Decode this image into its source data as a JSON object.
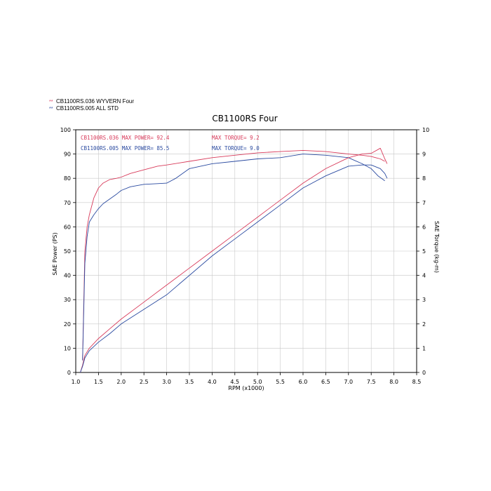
{
  "legend": [
    {
      "marker": "**",
      "label": "CB1100RS.036  WYVERN Four",
      "color": "#d83a5a"
    },
    {
      "marker": "**",
      "label": "CB1100RS.005  ALL STD",
      "color": "#2a4aa0"
    }
  ],
  "annotations": {
    "red_power": "CB1100RS.036  MAX POWER= 92.4",
    "red_torque": "MAX TORQUE= 9.2",
    "blue_power": "CB1100RS.005  MAX POWER= 85.5",
    "blue_torque": "MAX TORQUE= 9.0"
  },
  "chart_data": {
    "type": "line",
    "title": "CB1100RS Four",
    "xlabel": "RPM (x1000)",
    "ylabel": "SAE Power (PS)",
    "y2label": "SAE Torque (kg-m)",
    "xlim": [
      1.0,
      8.5
    ],
    "ylim": [
      0,
      100
    ],
    "y2lim": [
      0,
      10
    ],
    "xticks": [
      "1.0",
      "1.5",
      "2.0",
      "2.5",
      "3.0",
      "3.5",
      "4.0",
      "4.5",
      "5.0",
      "5.5",
      "6.0",
      "6.5",
      "7.0",
      "7.5",
      "8.0",
      "8.5"
    ],
    "yticks": [
      "0",
      "10",
      "20",
      "30",
      "40",
      "50",
      "60",
      "70",
      "80",
      "90",
      "100"
    ],
    "y2ticks": [
      "0",
      "1",
      "2",
      "3",
      "4",
      "5",
      "6",
      "7",
      "8",
      "9",
      "10"
    ],
    "grid": true,
    "colors": {
      "red": "#d83a5a",
      "blue": "#2a4aa0"
    },
    "series": [
      {
        "name": "CB1100RS.036  WYVERN Four",
        "axis": "torque",
        "color": "#d83a5a",
        "x": [
          1.15,
          1.2,
          1.25,
          1.3,
          1.4,
          1.5,
          1.6,
          1.75,
          1.9,
          2.0,
          2.2,
          2.5,
          2.8,
          3.0,
          3.5,
          4.0,
          4.5,
          5.0,
          5.5,
          6.0,
          6.5,
          7.0,
          7.3,
          7.5,
          7.6,
          7.7,
          7.8
        ],
        "y": [
          0.5,
          5.0,
          6.0,
          6.5,
          7.2,
          7.6,
          7.8,
          7.95,
          8.0,
          8.05,
          8.2,
          8.35,
          8.5,
          8.55,
          8.7,
          8.85,
          8.95,
          9.05,
          9.1,
          9.15,
          9.1,
          9.0,
          8.95,
          8.9,
          8.85,
          8.8,
          8.7
        ]
      },
      {
        "name": "CB1100RS.005  ALL STD",
        "axis": "torque",
        "color": "#2a4aa0",
        "x": [
          1.15,
          1.2,
          1.25,
          1.3,
          1.4,
          1.5,
          1.6,
          1.75,
          1.9,
          2.0,
          2.2,
          2.5,
          2.8,
          3.0,
          3.2,
          3.5,
          4.0,
          4.5,
          5.0,
          5.5,
          6.0,
          6.5,
          7.0,
          7.3,
          7.5,
          7.65,
          7.8
        ],
        "y": [
          0.5,
          4.5,
          5.6,
          6.2,
          6.5,
          6.75,
          6.95,
          7.15,
          7.35,
          7.5,
          7.65,
          7.75,
          7.78,
          7.8,
          8.0,
          8.4,
          8.6,
          8.7,
          8.8,
          8.85,
          9.0,
          8.95,
          8.85,
          8.6,
          8.4,
          8.1,
          7.9
        ]
      },
      {
        "name": "CB1100RS.036  WYVERN Four",
        "axis": "power",
        "color": "#d83a5a",
        "x": [
          1.1,
          1.15,
          1.2,
          1.3,
          1.5,
          1.75,
          2.0,
          2.5,
          3.0,
          3.5,
          4.0,
          4.5,
          5.0,
          5.5,
          6.0,
          6.5,
          7.0,
          7.3,
          7.5,
          7.7,
          7.8,
          7.85
        ],
        "y": [
          0,
          3,
          7,
          10,
          14,
          18,
          22,
          29,
          36,
          43,
          50,
          57,
          64,
          71,
          78,
          84,
          88.5,
          90,
          90.3,
          92.4,
          88,
          86
        ]
      },
      {
        "name": "CB1100RS.005  ALL STD",
        "axis": "power",
        "color": "#2a4aa0",
        "x": [
          1.1,
          1.15,
          1.2,
          1.3,
          1.5,
          1.75,
          2.0,
          2.5,
          3.0,
          3.5,
          4.0,
          4.5,
          5.0,
          5.5,
          6.0,
          6.5,
          7.0,
          7.3,
          7.5,
          7.7,
          7.8,
          7.85
        ],
        "y": [
          0,
          2.5,
          6,
          9,
          12.5,
          16,
          20,
          26,
          32,
          40,
          48,
          55,
          62,
          69,
          76,
          81,
          85,
          85.5,
          85.5,
          84,
          82,
          80
        ]
      }
    ]
  }
}
